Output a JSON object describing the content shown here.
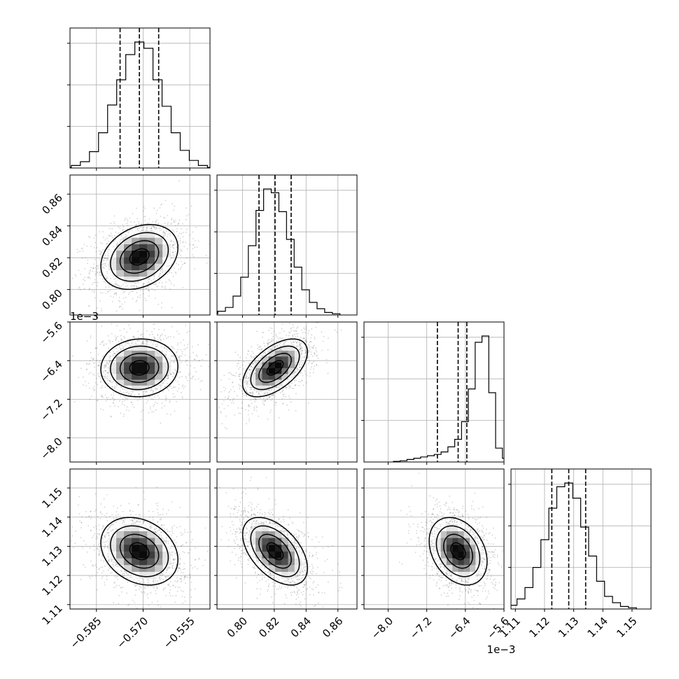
{
  "chart_data": {
    "type": "corner",
    "parameters": [
      {
        "range": [
          -0.5935,
          -0.5485
        ],
        "ticks": [
          -0.585,
          -0.57,
          -0.555
        ],
        "tick_labels": [
          "−0.585",
          "−0.570",
          "−0.555"
        ],
        "offset_text": "",
        "center": -0.5712,
        "sd": 0.0062,
        "quantiles": [
          -0.5774,
          -0.5712,
          -0.565
        ]
      },
      {
        "range": [
          0.784,
          0.872
        ],
        "ticks": [
          0.8,
          0.82,
          0.84,
          0.86
        ],
        "tick_labels": [
          "0.80",
          "0.82",
          "0.84",
          "0.86"
        ],
        "offset_text": "",
        "center": 0.8205,
        "sd": 0.0102,
        "quantiles": [
          0.8104,
          0.8205,
          0.8306
        ]
      },
      {
        "range": [
          -8.5,
          -5.6
        ],
        "ticks": [
          -8.0,
          -7.2,
          -6.4,
          -5.6
        ],
        "tick_labels": [
          "−8.0",
          "−7.2",
          "−6.4",
          "−5.6"
        ],
        "offset_text": "1e−3",
        "center": -6.55,
        "sd": 0.3,
        "quantiles": [
          -6.98,
          -6.55,
          -6.37
        ]
      },
      {
        "range": [
          1.1085,
          1.1565
        ],
        "ticks": [
          1.11,
          1.12,
          1.13,
          1.14,
          1.15
        ],
        "tick_labels": [
          "1.11",
          "1.12",
          "1.13",
          "1.14",
          "1.15"
        ],
        "offset_text": "",
        "center": 1.1283,
        "sd": 0.0058,
        "quantiles": [
          1.1225,
          1.1283,
          1.1341
        ]
      }
    ],
    "histograms": [
      [
        0.005,
        0.02,
        0.05,
        0.13,
        0.28,
        0.5,
        0.7,
        0.9,
        1.0,
        0.95,
        0.7,
        0.49,
        0.28,
        0.14,
        0.06,
        0.02,
        0.005
      ],
      [
        0.01,
        0.03,
        0.06,
        0.15,
        0.3,
        0.55,
        0.83,
        1.0,
        0.97,
        0.82,
        0.6,
        0.38,
        0.2,
        0.1,
        0.05,
        0.02,
        0.01
      ],
      [
        0.005,
        0.01,
        0.02,
        0.03,
        0.04,
        0.05,
        0.06,
        0.08,
        0.12,
        0.18,
        0.32,
        0.58,
        0.95,
        1.0,
        0.55,
        0.11,
        0.03,
        0.01,
        0.005
      ],
      [
        0.01,
        0.03,
        0.08,
        0.17,
        0.33,
        0.55,
        0.8,
        0.97,
        1.0,
        0.88,
        0.65,
        0.42,
        0.22,
        0.1,
        0.05,
        0.02,
        0.01
      ]
    ],
    "correlations": {
      "1-0": 0.28,
      "2-0": 0.05,
      "2-1": 0.55,
      "3-0": -0.25,
      "3-1": -0.5,
      "3-2": -0.3
    },
    "contour_levels": [
      0.5,
      1.0,
      1.5,
      2.0
    ],
    "grid": true,
    "hist_style": "step",
    "quantile_style": "dashed"
  }
}
